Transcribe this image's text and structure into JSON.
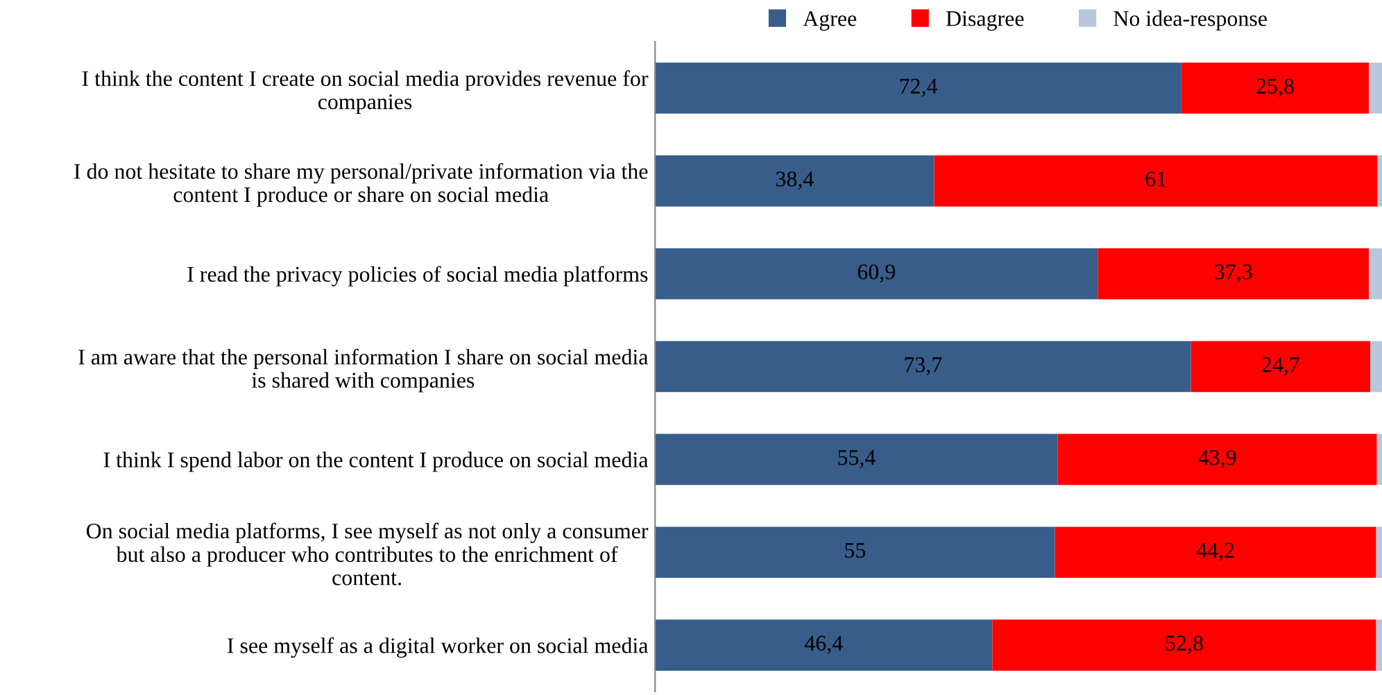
{
  "chart_data": {
    "type": "bar",
    "orientation": "horizontal",
    "stacked": true,
    "legend": "top",
    "grid": false,
    "xlim": [
      0,
      100
    ],
    "tick_labels": "y",
    "categories": [
      "I think the content I create on social media provides revenue for companies",
      "I do not hesitate to share my personal/private information via the content I produce or share on social media",
      "I read the privacy policies of social media platforms",
      "I am aware that the personal information I share on social media is shared with companies",
      "I think I spend labor on the content I produce on social media",
      "On social media platforms, I see myself as not only a consumer but also a producer who contributes to the enrichment of content.",
      "I see myself as a digital worker on social media"
    ],
    "series": [
      {
        "name": "Agree",
        "color": "#385d8a",
        "values": [
          72.4,
          38.4,
          60.9,
          73.7,
          55.4,
          55,
          46.4
        ],
        "value_labels": [
          "72,4",
          "38,4",
          "60,9",
          "73,7",
          "55,4",
          "55",
          "46,4"
        ]
      },
      {
        "name": "Disagree",
        "color": "#ff0000",
        "values": [
          25.8,
          61,
          37.3,
          24.7,
          43.9,
          44.2,
          52.8
        ],
        "value_labels": [
          "25,8",
          "61",
          "37,3",
          "24,7",
          "43,9",
          "44,2",
          "52,8"
        ]
      },
      {
        "name": "No idea-response",
        "color": "#b9c7dd",
        "values": [
          1.8,
          0.6,
          1.8,
          1.6,
          0.7,
          0.8,
          0.8
        ],
        "value_labels": [
          null,
          null,
          null,
          null,
          null,
          null,
          null
        ]
      }
    ]
  }
}
